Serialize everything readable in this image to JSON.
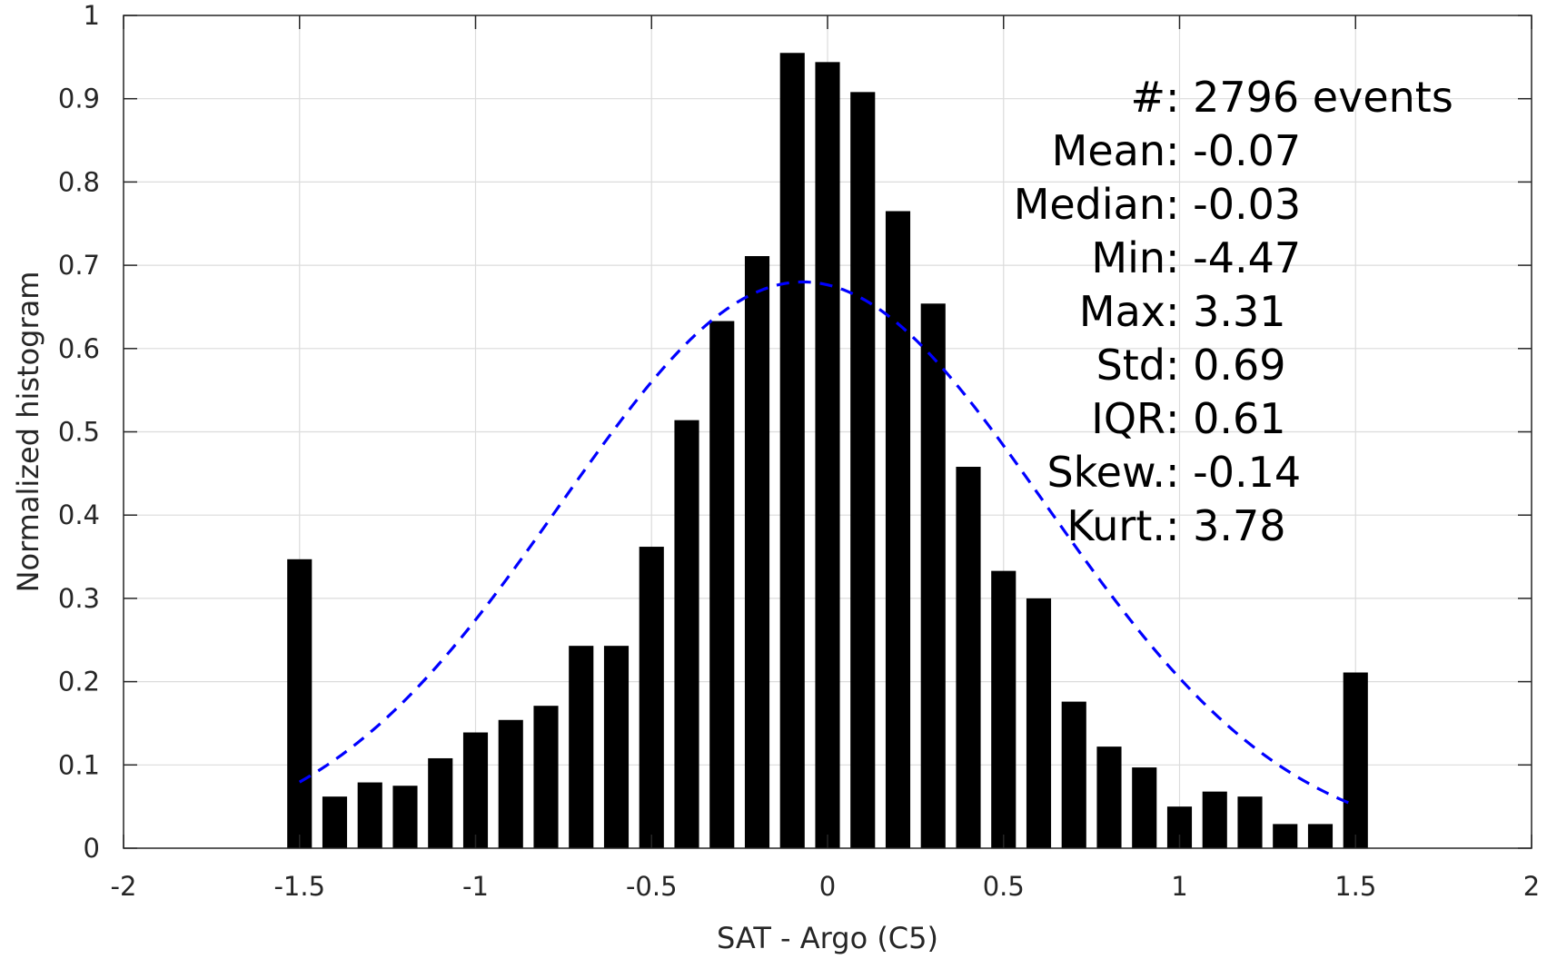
{
  "chart_data": {
    "type": "bar",
    "xlabel": "SAT - Argo (C5)",
    "ylabel": "Normalized histogram",
    "xlim": [
      -2,
      2
    ],
    "ylim": [
      0,
      1
    ],
    "xticks": [
      -2,
      -1.5,
      -1,
      -0.5,
      0,
      0.5,
      1,
      1.5,
      2
    ],
    "xtick_labels": [
      "-2",
      "-1.5",
      "-1",
      "-0.5",
      "0",
      "0.5",
      "1",
      "1.5",
      "2"
    ],
    "yticks": [
      0,
      0.1,
      0.2,
      0.3,
      0.4,
      0.5,
      0.6,
      0.7,
      0.8,
      0.9,
      1
    ],
    "ytick_labels": [
      "0",
      "0.1",
      "0.2",
      "0.3",
      "0.4",
      "0.5",
      "0.6",
      "0.7",
      "0.8",
      "0.9",
      "1"
    ],
    "grid": true,
    "bar_width": 0.07,
    "x": [
      -1.5,
      -1.4,
      -1.3,
      -1.2,
      -1.1,
      -1.0,
      -0.9,
      -0.8,
      -0.7,
      -0.6,
      -0.5,
      -0.4,
      -0.3,
      -0.2,
      -0.1,
      0.0,
      0.1,
      0.2,
      0.3,
      0.4,
      0.5,
      0.6,
      0.7,
      0.8,
      0.9,
      1.0,
      1.1,
      1.2,
      1.3,
      1.4,
      1.5
    ],
    "values": [
      0.347,
      0.062,
      0.079,
      0.075,
      0.108,
      0.139,
      0.154,
      0.171,
      0.243,
      0.243,
      0.362,
      0.514,
      0.633,
      0.711,
      0.955,
      0.944,
      0.908,
      0.765,
      0.654,
      0.458,
      0.333,
      0.3,
      0.176,
      0.122,
      0.097,
      0.05,
      0.068,
      0.062,
      0.029,
      0.029,
      0.211
    ],
    "fit_curve": {
      "type": "normal",
      "mean": -0.07,
      "std": 0.69,
      "peak": 0.68,
      "x_range": [
        -1.5,
        1.5
      ],
      "color": "#0000ff",
      "style": "dashed"
    },
    "annotations": [
      {
        "label": "#  ",
        "value": ": 2796 events"
      },
      {
        "label": "Mean ",
        "value": ": -0.07"
      },
      {
        "label": "Median ",
        "value": ": -0.03"
      },
      {
        "label": "Min ",
        "value": ": -4.47"
      },
      {
        "label": "Max ",
        "value": ": 3.31"
      },
      {
        "label": "Std ",
        "value": ": 0.69"
      },
      {
        "label": "IQR ",
        "value": ": 0.61"
      },
      {
        "label": "Skew. ",
        "value": ": -0.14"
      },
      {
        "label": "Kurt. ",
        "value": ": 3.78"
      }
    ]
  }
}
